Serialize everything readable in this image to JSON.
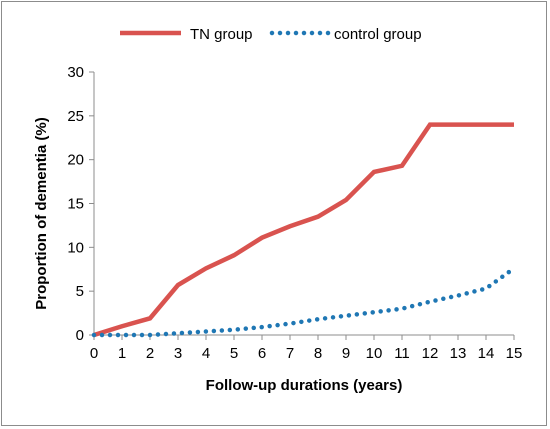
{
  "chart_data": {
    "type": "line",
    "title": "",
    "xlabel": "Follow-up durations  (years)",
    "ylabel": "Proportion of dementia (%)",
    "x": [
      0,
      1,
      2,
      3,
      4,
      5,
      6,
      7,
      8,
      9,
      10,
      11,
      12,
      13,
      14,
      15
    ],
    "xlim": [
      0,
      15
    ],
    "ylim": [
      0,
      30
    ],
    "yticks": [
      0,
      5,
      10,
      15,
      20,
      25,
      30
    ],
    "grid": false,
    "legend_position": "top-center",
    "series": [
      {
        "name": "TN group",
        "color": "#d9534f",
        "style": "solid",
        "values": [
          0,
          1.0,
          1.9,
          5.7,
          7.6,
          9.1,
          11.1,
          12.4,
          13.5,
          15.4,
          18.6,
          19.3,
          24.0,
          24.0,
          24.0,
          24.0
        ]
      },
      {
        "name": "control group",
        "color": "#1f77b4",
        "style": "dotted",
        "values": [
          0,
          0,
          0,
          0.2,
          0.4,
          0.6,
          0.9,
          1.3,
          1.8,
          2.2,
          2.6,
          3.0,
          3.8,
          4.5,
          5.3,
          7.6
        ]
      }
    ]
  }
}
